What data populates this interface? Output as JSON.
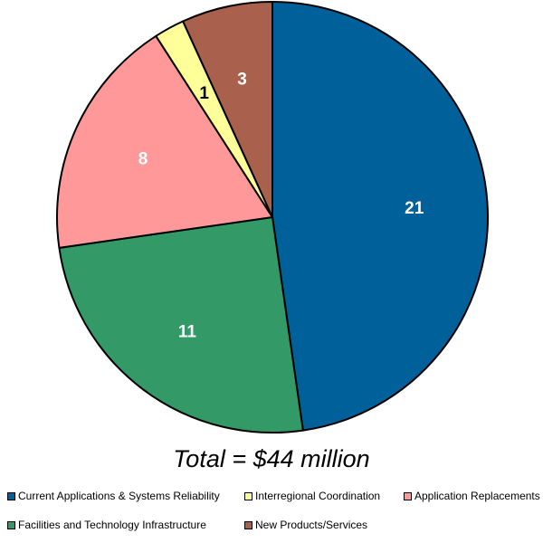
{
  "chart_data": {
    "type": "pie",
    "title": "Total = $44 million",
    "categories": [
      "Current Applications & Systems Reliability",
      "Interregional Coordination",
      "Application Replacements",
      "Facilities and Technology Infrastructure",
      "New Products/Services"
    ],
    "values": [
      21,
      1,
      8,
      11,
      3
    ],
    "slice_order_clockwise_from_top": [
      "Current Applications & Systems Reliability",
      "Facilities and Technology Infrastructure",
      "Application Replacements",
      "Interregional Coordination",
      "New Products/Services"
    ],
    "colors": {
      "Current Applications & Systems Reliability": "#00609A",
      "Interregional Coordination": "#FFFF99",
      "Application Replacements": "#FF9999",
      "Facilities and Technology Infrastructure": "#339966",
      "New Products/Services": "#A9604D"
    },
    "label_colors": {
      "Current Applications & Systems Reliability": "#FFFFFF",
      "Interregional Coordination": "#000000",
      "Application Replacements": "#FFFFFF",
      "Facilities and Technology Infrastructure": "#FFFFFF",
      "New Products/Services": "#FFFFFF"
    },
    "legend_placement": "bottom"
  },
  "total_label": "Total = $44 million"
}
